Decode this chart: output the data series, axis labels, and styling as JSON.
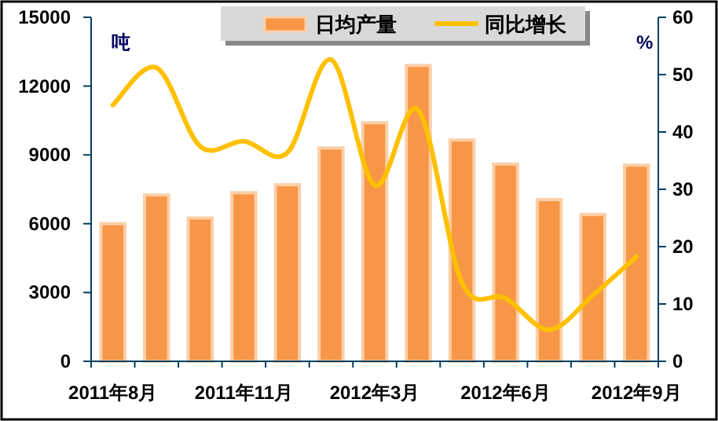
{
  "chart_data": {
    "type": "bar",
    "ylabel": "吨",
    "y2label": "%",
    "categories": [
      "2011年8月",
      null,
      null,
      "2011年11月",
      null,
      null,
      "2012年3月",
      null,
      null,
      "2012年6月",
      null,
      null,
      "2012年9月"
    ],
    "series": [
      {
        "name": "日均产量",
        "color": "#f79646",
        "values": [
          6000,
          7250,
          6250,
          7350,
          7700,
          9300,
          10400,
          12900,
          9650,
          8600,
          7050,
          6400,
          8550
        ]
      },
      {
        "name": "同比增长",
        "type": "line",
        "axis": "y2",
        "color": "#ffc000",
        "values": [
          44.7,
          51.2,
          37.5,
          38.4,
          36.4,
          52.6,
          30.7,
          43.8,
          13.7,
          11.0,
          5.5,
          11.5,
          18.3
        ]
      }
    ],
    "ylim": [
      0,
      15000
    ],
    "yticks": [
      0,
      3000,
      6000,
      9000,
      12000,
      15000
    ],
    "y2lim": [
      0,
      60
    ],
    "y2ticks": [
      0,
      10,
      20,
      30,
      40,
      50,
      60
    ],
    "legend": "top",
    "grid": false
  }
}
